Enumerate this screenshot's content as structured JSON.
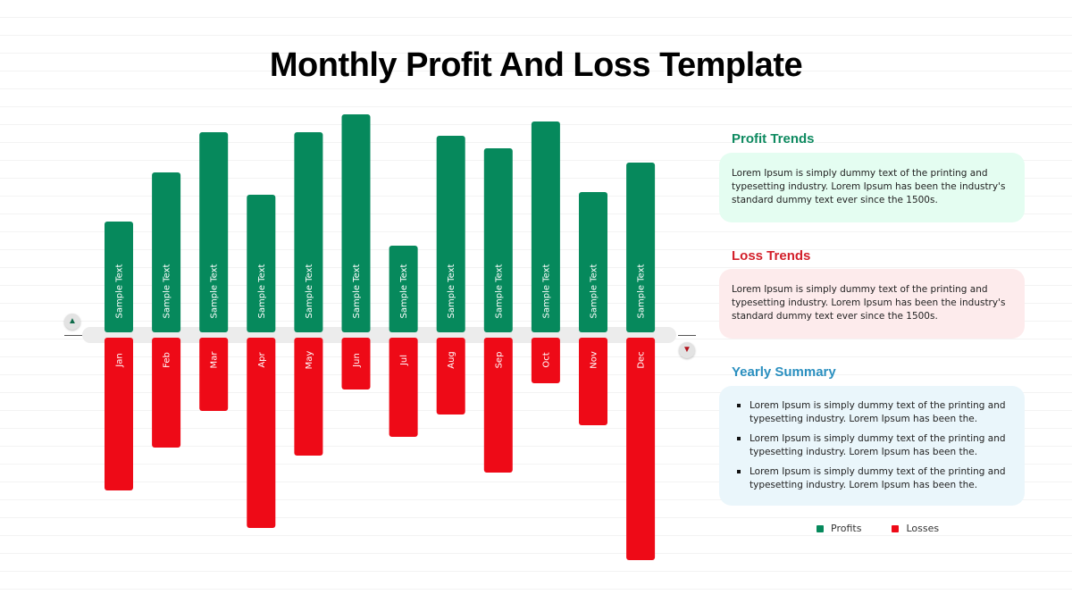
{
  "title": "Monthly Profit And Loss Template",
  "colors": {
    "profit": "#06895c",
    "loss": "#ee0a17",
    "profit_heading": "#0e8a60",
    "loss_heading": "#d3202b",
    "summary_heading": "#2a8fbf",
    "profit_panel_bg": "#e4fdf1",
    "loss_panel_bg": "#fdebec",
    "summary_panel_bg": "#eaf6fb",
    "axis_band": "#ececec"
  },
  "chart_data": {
    "type": "bar",
    "categories": [
      "Jan",
      "Feb",
      "Mar",
      "Apr",
      "May",
      "Jun",
      "Jul",
      "Aug",
      "Sep",
      "Oct",
      "Nov",
      "Dec"
    ],
    "bar_label": "Sample Text",
    "series": [
      {
        "name": "Profits",
        "values": [
          118,
          173,
          218,
          148,
          218,
          238,
          91,
          214,
          200,
          230,
          151,
          184
        ]
      },
      {
        "name": "Losses",
        "values": [
          -165,
          -117,
          -76,
          -207,
          -126,
          -52,
          -105,
          -80,
          -145,
          -45,
          -92,
          -243
        ]
      }
    ],
    "ylim": [
      -250,
      250
    ]
  },
  "markers": {
    "up_icon": "triangle-up-icon",
    "down_icon": "triangle-down-icon",
    "up_glyph": "▲",
    "down_glyph": "▼"
  },
  "panels": {
    "profit": {
      "heading": "Profit Trends",
      "text": "Lorem Ipsum is simply dummy text of the printing and typesetting industry. Lorem Ipsum has been the industry's standard dummy text ever since the 1500s."
    },
    "loss": {
      "heading": "Loss Trends",
      "text": "Lorem Ipsum is simply dummy text of the printing and typesetting industry. Lorem Ipsum has been the industry's standard dummy text ever since the 1500s."
    },
    "summary": {
      "heading": "Yearly Summary",
      "items": [
        "Lorem Ipsum is simply dummy text of the printing and typesetting industry. Lorem Ipsum has been the.",
        "Lorem Ipsum is simply dummy text of the printing and typesetting industry. Lorem Ipsum has been the.",
        "Lorem Ipsum is simply dummy text of the printing and typesetting industry. Lorem Ipsum has been the."
      ]
    }
  },
  "legend": {
    "profits_label": "Profits",
    "losses_label": "Losses"
  }
}
